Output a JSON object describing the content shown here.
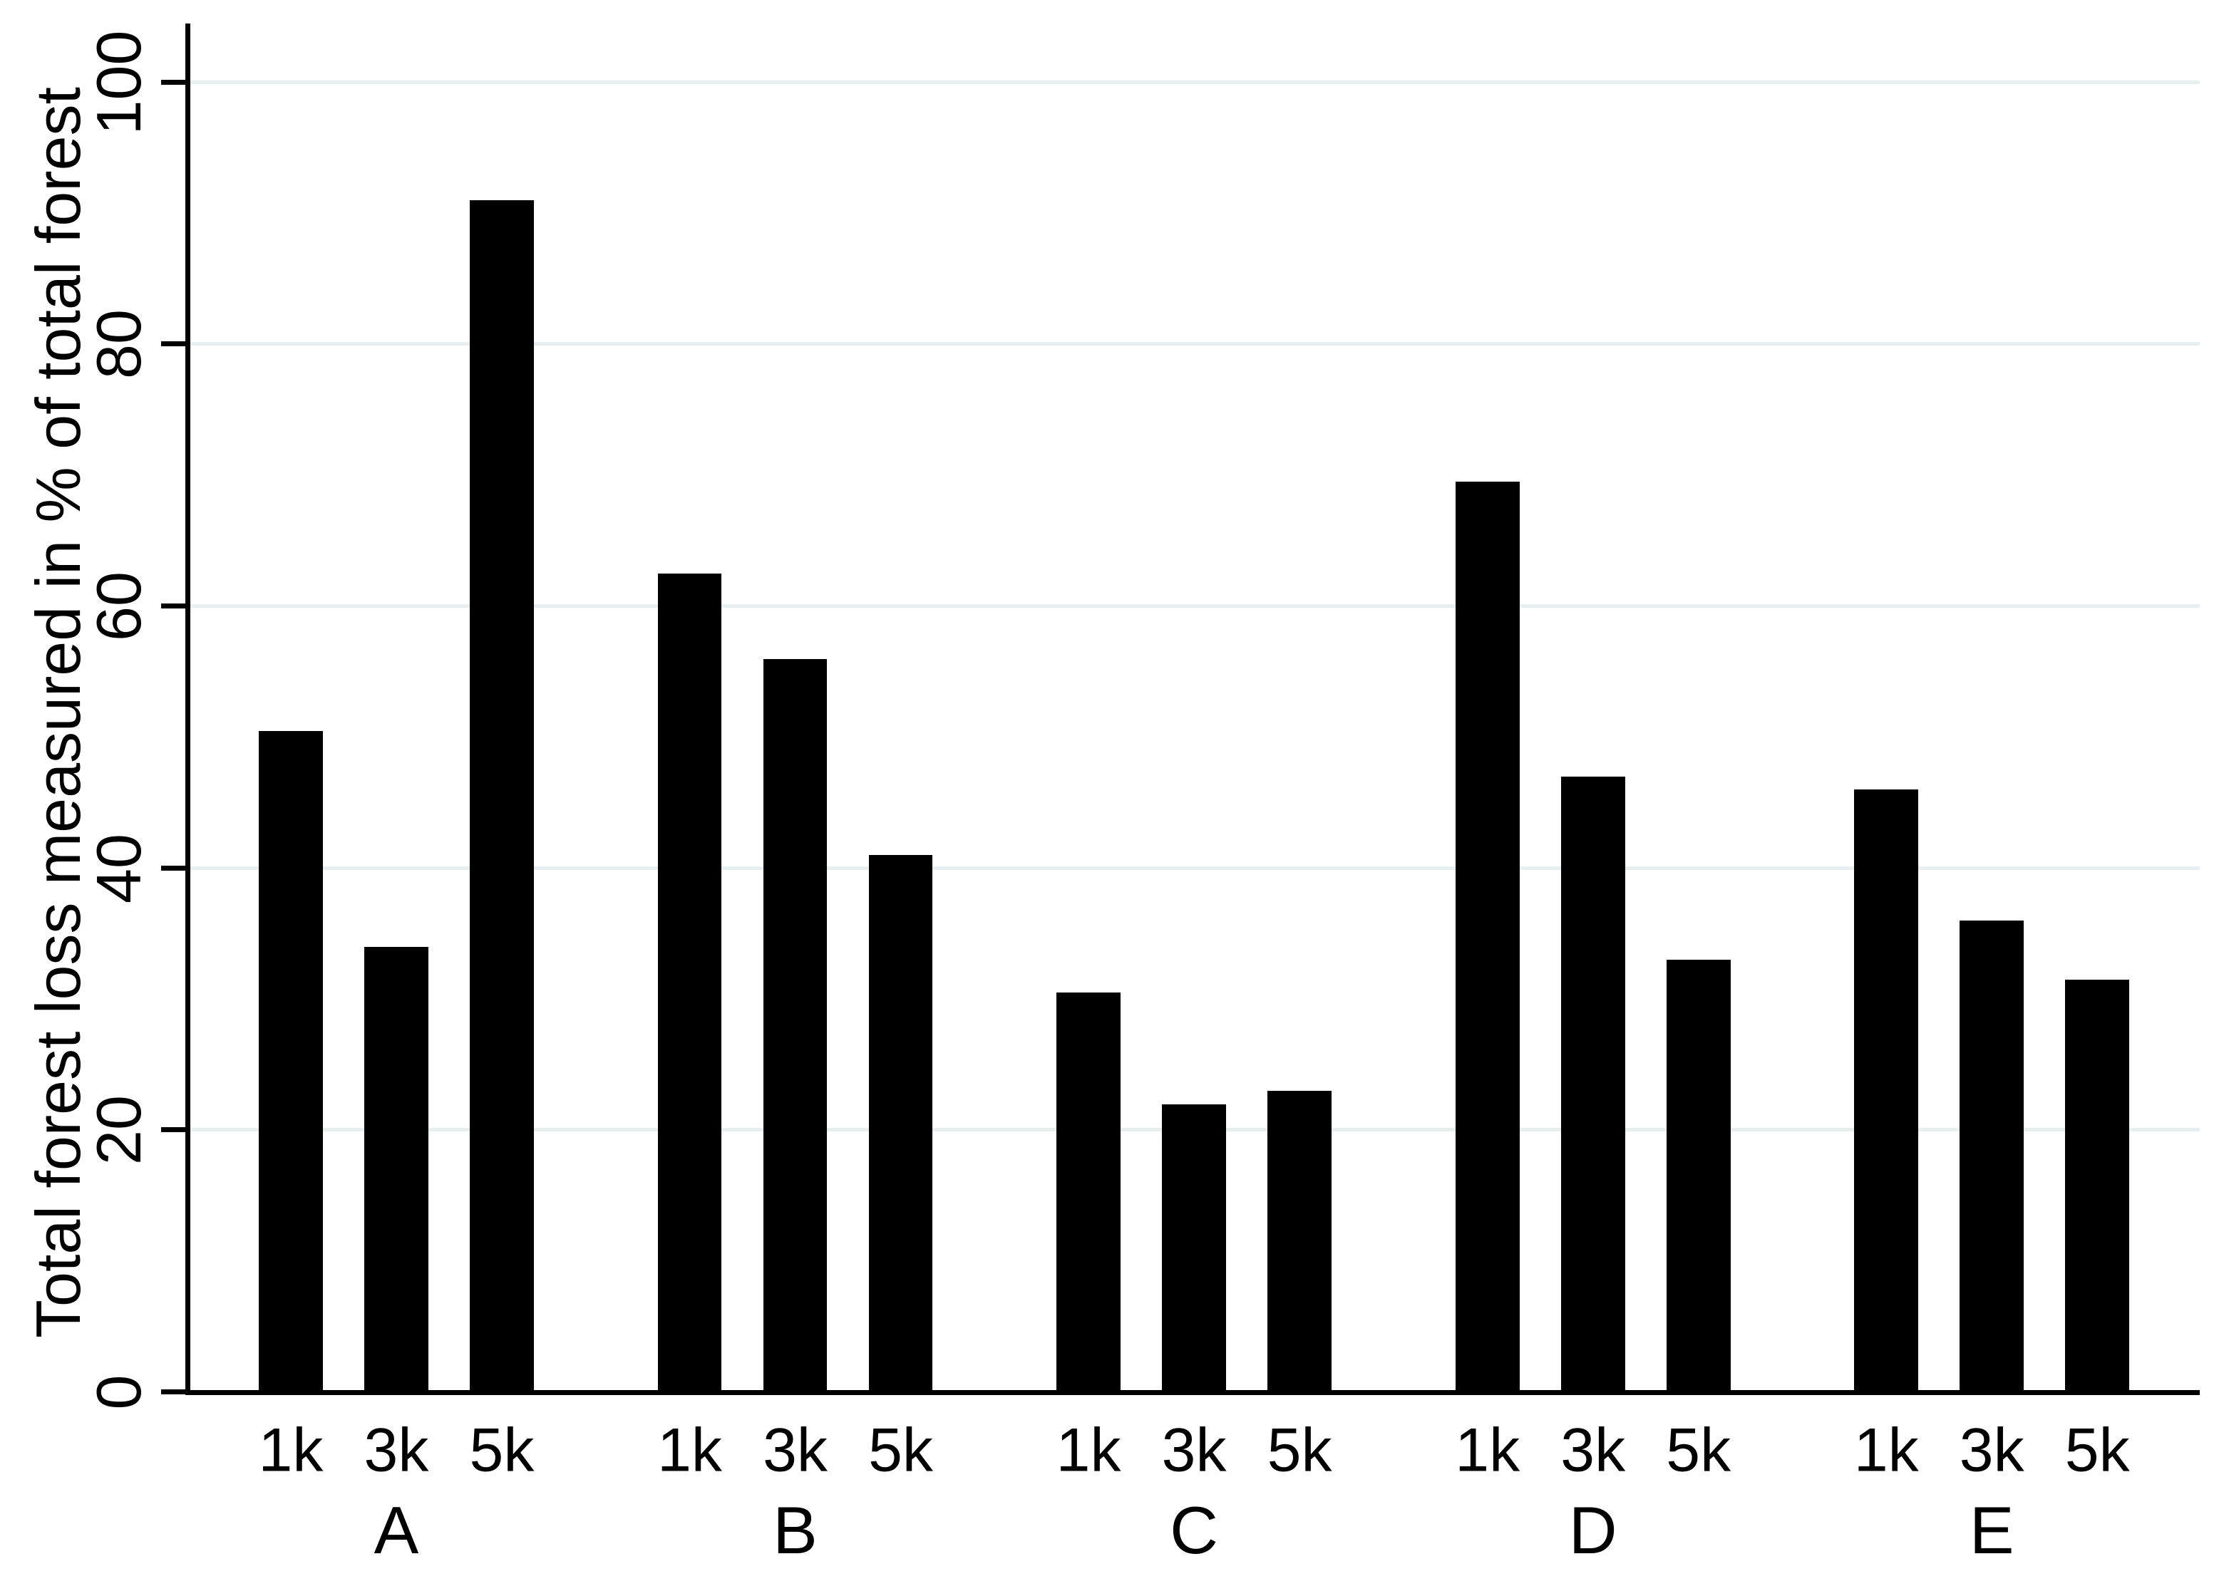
{
  "chart_data": {
    "type": "bar",
    "title": "",
    "ylabel": "Total forest loss measured in % of total forest",
    "xlabel": "",
    "ylim": [
      0,
      100
    ],
    "yticks": [
      0,
      20,
      40,
      60,
      80,
      100
    ],
    "grid": true,
    "legend_position": "none",
    "bar_color": "#000000",
    "gridline_color": "#e6f0f0",
    "background_color": "#ffffff",
    "categories": [
      "1k",
      "3k",
      "5k"
    ],
    "groups": [
      {
        "label": "A",
        "values": [
          50.5,
          34,
          91
        ]
      },
      {
        "label": "B",
        "values": [
          62.5,
          56,
          41
        ]
      },
      {
        "label": "C",
        "values": [
          30.5,
          22,
          23
        ]
      },
      {
        "label": "D",
        "values": [
          69.5,
          47,
          33
        ]
      },
      {
        "label": "E",
        "values": [
          46,
          36,
          31.5
        ]
      }
    ]
  }
}
